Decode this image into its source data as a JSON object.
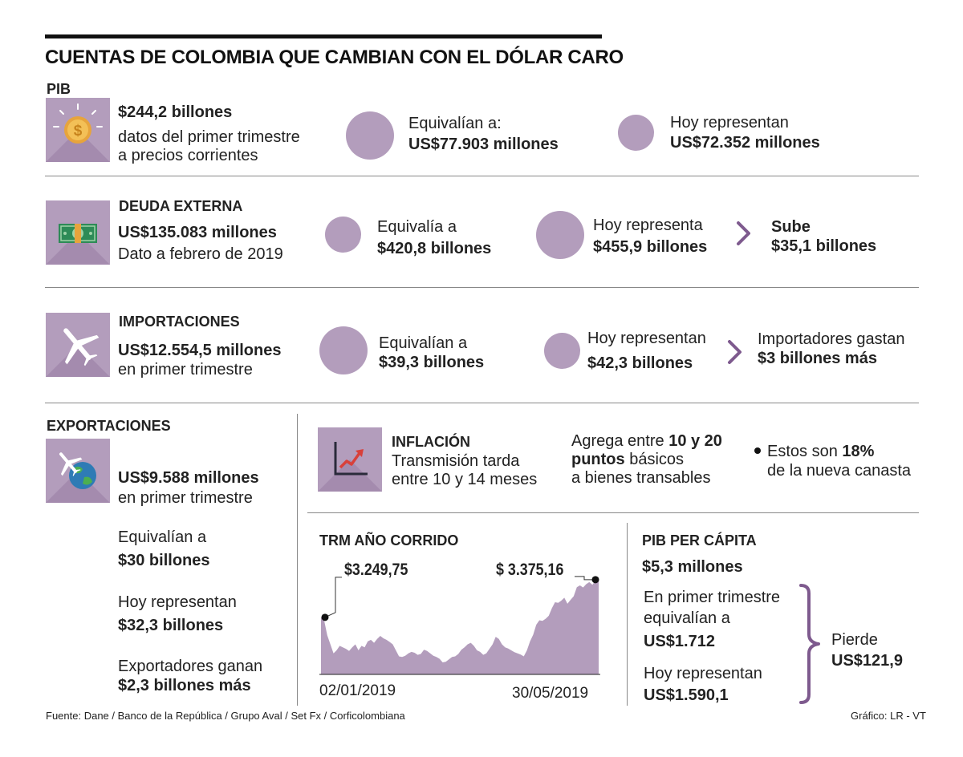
{
  "title": "CUENTAS DE COLOMBIA QUE CAMBIAN CON EL DÓLAR CARO",
  "colors": {
    "accent": "#b39dbc",
    "accent_dark": "#7e5a8e",
    "text": "#222222"
  },
  "pib": {
    "label": "PIB",
    "value": "$244,2 billones",
    "desc1": "datos del primer trimestre",
    "desc2": "a precios corrientes",
    "equiv_label": "Equivalían a:",
    "equiv_value": "US$77.903 millones",
    "hoy_label": "Hoy representan",
    "hoy_value": "US$72.352 millones"
  },
  "deuda": {
    "label": "DEUDA EXTERNA",
    "value": "US$135.083 millones",
    "desc": "Dato a febrero de 2019",
    "equiv_label": "Equivalía a",
    "equiv_value": "$420,8 billones",
    "hoy_label": "Hoy representa",
    "hoy_value": "$455,9 billones",
    "delta_label": "Sube",
    "delta_value": "$35,1 billones"
  },
  "importaciones": {
    "label": "IMPORTACIONES",
    "value": "US$12.554,5 millones",
    "desc": "en primer trimestre",
    "equiv_label": "Equivalían a",
    "equiv_value": "$39,3 billones",
    "hoy_label": "Hoy representan",
    "hoy_value": "$42,3 billones",
    "delta_label": "Importadores gastan",
    "delta_value": "$3 billones más"
  },
  "exportaciones": {
    "label": "EXPORTACIONES",
    "value": "US$9.588 millones",
    "desc": "en primer trimestre",
    "equiv_label": "Equivalían a",
    "equiv_value": "$30 billones",
    "hoy_label": "Hoy representan",
    "hoy_value": "$32,3 billones",
    "delta_label": "Exportadores ganan",
    "delta_value": "$2,3 billones más"
  },
  "inflacion": {
    "label": "INFLACIÓN",
    "desc1": "Transmisión tarda",
    "desc2": "entre 10 y 14 meses",
    "agrega_1": "Agrega entre ",
    "agrega_bold1": "10 y 20",
    "agrega_bold2": "puntos",
    "agrega_2": " básicos",
    "agrega_3": "a bienes transables",
    "canasta_1": "Estos son ",
    "canasta_bold": "18%",
    "canasta_2": "de la nueva canasta"
  },
  "trm": {
    "label": "TRM AÑO CORRIDO",
    "start_value": "$3.249,75",
    "end_value": "$ 3.375,16",
    "start_date": "02/01/2019",
    "end_date": "30/05/2019"
  },
  "pib_percapita": {
    "label": "PIB PER CÁPITA",
    "value": "$5,3 millones",
    "equiv_1": "En primer trimestre",
    "equiv_2": "equivalían a",
    "equiv_value": "US$1.712",
    "hoy_label": "Hoy representan",
    "hoy_value": "US$1.590,1",
    "delta_label": "Pierde",
    "delta_value": "US$121,9"
  },
  "footer": {
    "source": "Fuente: Dane / Banco de la República / Grupo Aval / Set Fx / Corficolombiana",
    "credit": "Gráfico: LR - VT"
  },
  "chart_data": {
    "type": "area",
    "title": "TRM AÑO CORRIDO",
    "xlabel": "",
    "ylabel": "",
    "x_start": "02/01/2019",
    "x_end": "30/05/2019",
    "ylim": [
      3060,
      3420
    ],
    "grid": false,
    "legend": "none",
    "annotations": [
      {
        "label": "$3.249,75",
        "index": 0
      },
      {
        "label": "$ 3.375,16",
        "index": "last"
      }
    ],
    "values": [
      3249.75,
      3240,
      3190,
      3160,
      3130,
      3140,
      3155,
      3150,
      3145,
      3138,
      3150,
      3160,
      3140,
      3155,
      3150,
      3170,
      3175,
      3165,
      3178,
      3188,
      3180,
      3175,
      3168,
      3160,
      3140,
      3120,
      3118,
      3122,
      3130,
      3135,
      3132,
      3125,
      3128,
      3142,
      3138,
      3130,
      3122,
      3118,
      3112,
      3100,
      3102,
      3110,
      3118,
      3120,
      3128,
      3142,
      3150,
      3160,
      3165,
      3155,
      3140,
      3135,
      3125,
      3130,
      3145,
      3160,
      3185,
      3178,
      3160,
      3150,
      3146,
      3140,
      3134,
      3130,
      3126,
      3120,
      3140,
      3170,
      3192,
      3225,
      3240,
      3238,
      3245,
      3255,
      3280,
      3300,
      3298,
      3305,
      3315,
      3295,
      3308,
      3320,
      3350,
      3356,
      3349,
      3360,
      3367,
      3358,
      3372,
      3375.16
    ]
  }
}
